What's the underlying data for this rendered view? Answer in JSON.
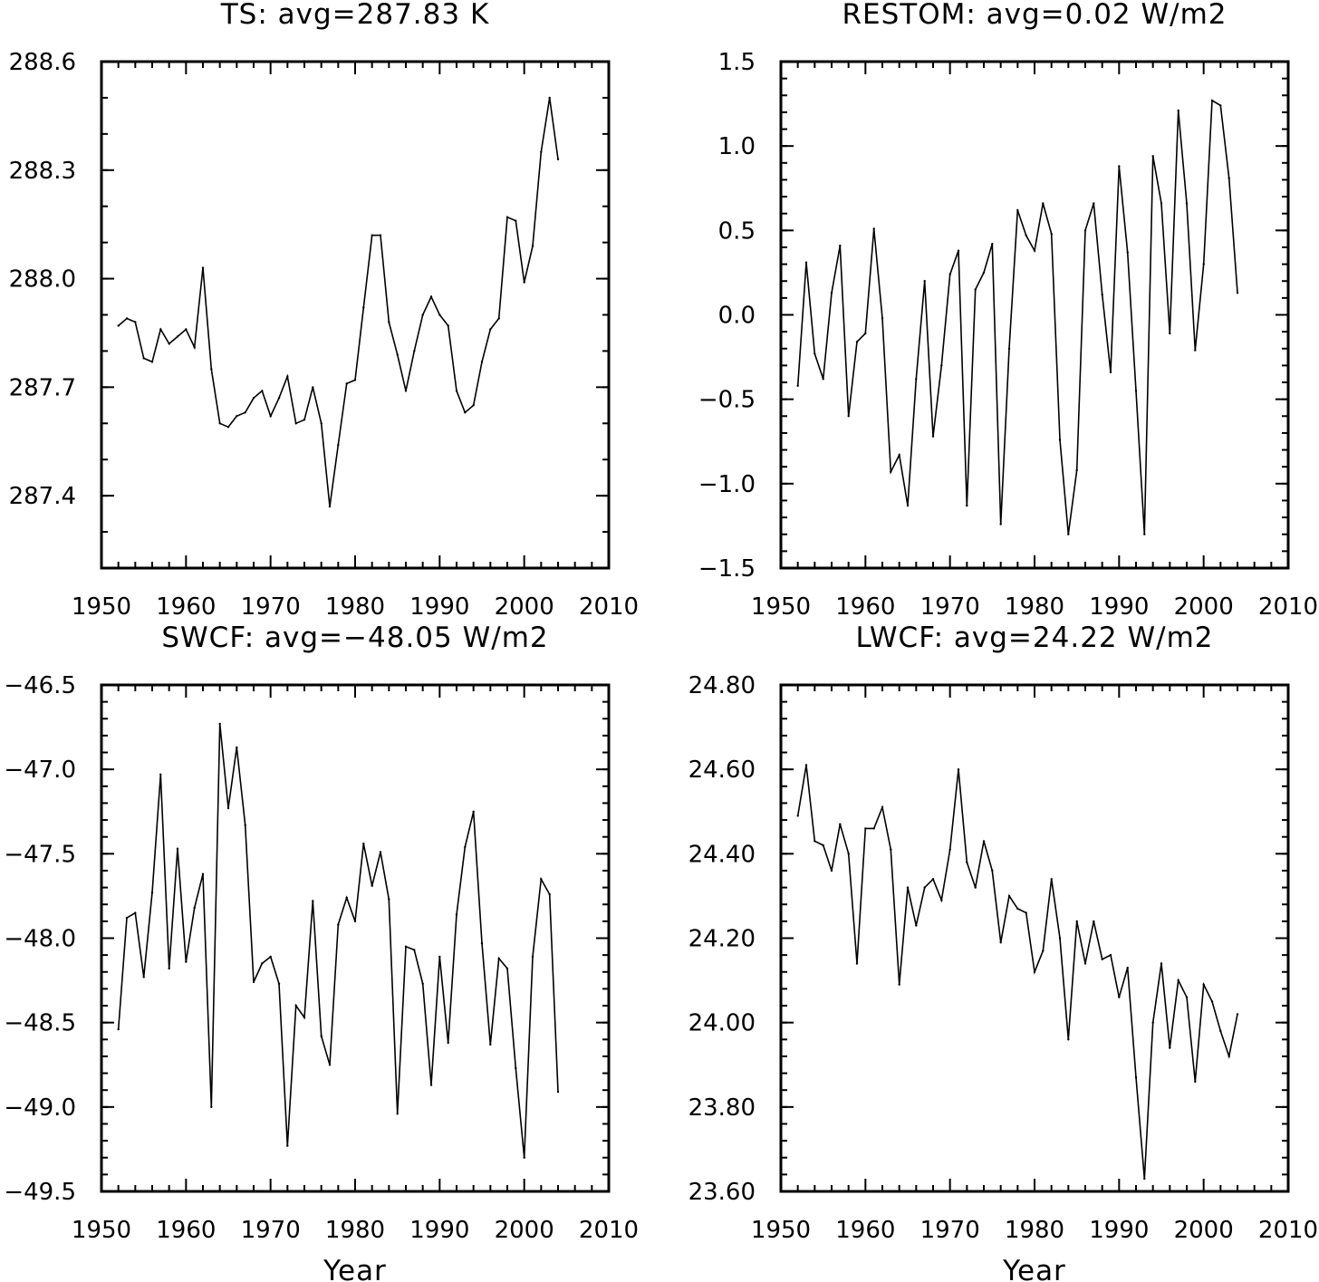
{
  "chart_data": [
    {
      "type": "line",
      "title": "TS: avg=287.83 K",
      "xlabel": "",
      "ylabel": "",
      "xlim": [
        1950,
        2010
      ],
      "ylim": [
        287.2,
        288.6
      ],
      "xticks": [
        1950,
        1960,
        1970,
        1980,
        1990,
        2000,
        2010
      ],
      "xtick_labels": [
        "1950",
        "1960",
        "1970",
        "1980",
        "1990",
        "2000",
        "2010"
      ],
      "yticks": [
        287.4,
        287.7,
        288.0,
        288.3,
        288.6
      ],
      "ytick_labels": [
        "287.4",
        "287.7",
        "288.0",
        "288.3",
        "288.6"
      ],
      "yminor_step": 0.1,
      "grid": false,
      "series": [
        {
          "x": [
            1952,
            1953,
            1954,
            1955,
            1956,
            1957,
            1958,
            1959,
            1960,
            1961,
            1962,
            1963,
            1964,
            1965,
            1966,
            1967,
            1968,
            1969,
            1970,
            1971,
            1972,
            1973,
            1974,
            1975,
            1976,
            1977,
            1978,
            1979,
            1980,
            1981,
            1982,
            1983,
            1984,
            1985,
            1986,
            1987,
            1988,
            1989,
            1990,
            1991,
            1992,
            1993,
            1994,
            1995,
            1996,
            1997,
            1998,
            1999,
            2000,
            2001,
            2002,
            2003,
            2004
          ],
          "values": [
            287.87,
            287.89,
            287.88,
            287.78,
            287.77,
            287.86,
            287.82,
            287.84,
            287.86,
            287.81,
            288.03,
            287.75,
            287.6,
            287.59,
            287.62,
            287.63,
            287.67,
            287.69,
            287.62,
            287.67,
            287.73,
            287.6,
            287.61,
            287.7,
            287.6,
            287.37,
            287.54,
            287.71,
            287.72,
            287.92,
            288.12,
            288.12,
            287.88,
            287.79,
            287.69,
            287.8,
            287.9,
            287.95,
            287.9,
            287.87,
            287.69,
            287.63,
            287.65,
            287.77,
            287.86,
            287.89,
            288.17,
            288.16,
            287.99,
            288.09,
            288.35,
            288.5,
            288.33
          ]
        }
      ]
    },
    {
      "type": "line",
      "title": "RESTOM: avg=0.02 W/m2",
      "xlabel": "",
      "ylabel": "",
      "xlim": [
        1950,
        2010
      ],
      "ylim": [
        -1.5,
        1.5
      ],
      "xticks": [
        1950,
        1960,
        1970,
        1980,
        1990,
        2000,
        2010
      ],
      "xtick_labels": [
        "1950",
        "1960",
        "1970",
        "1980",
        "1990",
        "2000",
        "2010"
      ],
      "yticks": [
        -1.5,
        -1.0,
        -0.5,
        0.0,
        0.5,
        1.0,
        1.5
      ],
      "ytick_labels": [
        "−1.5",
        "−1.0",
        "−0.5",
        "0.0",
        "0.5",
        "1.0",
        "1.5"
      ],
      "yminor_step": 0.1,
      "grid": false,
      "series": [
        {
          "x": [
            1952,
            1953,
            1954,
            1955,
            1956,
            1957,
            1958,
            1959,
            1960,
            1961,
            1962,
            1963,
            1964,
            1965,
            1966,
            1967,
            1968,
            1969,
            1970,
            1971,
            1972,
            1973,
            1974,
            1975,
            1976,
            1977,
            1978,
            1979,
            1980,
            1981,
            1982,
            1983,
            1984,
            1985,
            1986,
            1987,
            1988,
            1989,
            1990,
            1991,
            1992,
            1993,
            1994,
            1995,
            1996,
            1997,
            1998,
            1999,
            2000,
            2001,
            2002,
            2003,
            2004
          ],
          "values": [
            -0.42,
            0.31,
            -0.23,
            -0.38,
            0.13,
            0.41,
            -0.6,
            -0.16,
            -0.11,
            0.51,
            -0.02,
            -0.93,
            -0.83,
            -1.13,
            -0.38,
            0.2,
            -0.72,
            -0.3,
            0.24,
            0.38,
            -1.13,
            0.15,
            0.25,
            0.42,
            -1.24,
            -0.2,
            0.62,
            0.47,
            0.38,
            0.66,
            0.48,
            -0.74,
            -1.3,
            -0.92,
            0.5,
            0.66,
            0.12,
            -0.34,
            0.88,
            0.37,
            -0.45,
            -1.3,
            0.94,
            0.66,
            -0.11,
            1.21,
            0.66,
            -0.21,
            0.3,
            1.27,
            1.24,
            0.81,
            0.13
          ]
        }
      ]
    },
    {
      "type": "line",
      "title": "SWCF: avg=−48.05 W/m2",
      "xlabel": "Year",
      "ylabel": "",
      "xlim": [
        1950,
        2010
      ],
      "ylim": [
        -49.5,
        -46.5
      ],
      "xticks": [
        1950,
        1960,
        1970,
        1980,
        1990,
        2000,
        2010
      ],
      "xtick_labels": [
        "1950",
        "1960",
        "1970",
        "1980",
        "1990",
        "2000",
        "2010"
      ],
      "yticks": [
        -49.5,
        -49.0,
        -48.5,
        -48.0,
        -47.5,
        -47.0,
        -46.5
      ],
      "ytick_labels": [
        "−49.5",
        "−49.0",
        "−48.5",
        "−48.0",
        "−47.5",
        "−47.0",
        "−46.5"
      ],
      "yminor_step": 0.1,
      "grid": false,
      "series": [
        {
          "x": [
            1952,
            1953,
            1954,
            1955,
            1956,
            1957,
            1958,
            1959,
            1960,
            1961,
            1962,
            1963,
            1964,
            1965,
            1966,
            1967,
            1968,
            1969,
            1970,
            1971,
            1972,
            1973,
            1974,
            1975,
            1976,
            1977,
            1978,
            1979,
            1980,
            1981,
            1982,
            1983,
            1984,
            1985,
            1986,
            1987,
            1988,
            1989,
            1990,
            1991,
            1992,
            1993,
            1994,
            1995,
            1996,
            1997,
            1998,
            1999,
            2000,
            2001,
            2002,
            2003,
            2004
          ],
          "values": [
            -48.54,
            -47.88,
            -47.85,
            -48.23,
            -47.73,
            -47.03,
            -48.18,
            -47.47,
            -48.14,
            -47.82,
            -47.62,
            -49.0,
            -46.73,
            -47.23,
            -46.87,
            -47.33,
            -48.26,
            -48.15,
            -48.11,
            -48.27,
            -49.23,
            -48.4,
            -48.47,
            -47.78,
            -48.58,
            -48.75,
            -47.92,
            -47.76,
            -47.9,
            -47.44,
            -47.69,
            -47.49,
            -47.77,
            -49.04,
            -48.05,
            -48.07,
            -48.27,
            -48.87,
            -48.11,
            -48.62,
            -47.86,
            -47.46,
            -47.25,
            -48.03,
            -48.63,
            -48.12,
            -48.18,
            -48.77,
            -49.3,
            -48.11,
            -47.65,
            -47.74,
            -48.91
          ]
        }
      ]
    },
    {
      "type": "line",
      "title": "LWCF: avg=24.22 W/m2",
      "xlabel": "Year",
      "ylabel": "",
      "xlim": [
        1950,
        2010
      ],
      "ylim": [
        23.6,
        24.8
      ],
      "xticks": [
        1950,
        1960,
        1970,
        1980,
        1990,
        2000,
        2010
      ],
      "xtick_labels": [
        "1950",
        "1960",
        "1970",
        "1980",
        "1990",
        "2000",
        "2010"
      ],
      "yticks": [
        23.6,
        23.8,
        24.0,
        24.2,
        24.4,
        24.6,
        24.8
      ],
      "ytick_labels": [
        "23.60",
        "23.80",
        "24.00",
        "24.20",
        "24.40",
        "24.60",
        "24.80"
      ],
      "yminor_step": 0.04,
      "grid": false,
      "series": [
        {
          "x": [
            1952,
            1953,
            1954,
            1955,
            1956,
            1957,
            1958,
            1959,
            1960,
            1961,
            1962,
            1963,
            1964,
            1965,
            1966,
            1967,
            1968,
            1969,
            1970,
            1971,
            1972,
            1973,
            1974,
            1975,
            1976,
            1977,
            1978,
            1979,
            1980,
            1981,
            1982,
            1983,
            1984,
            1985,
            1986,
            1987,
            1988,
            1989,
            1990,
            1991,
            1992,
            1993,
            1994,
            1995,
            1996,
            1997,
            1998,
            1999,
            2000,
            2001,
            2002,
            2003,
            2004
          ],
          "values": [
            24.49,
            24.61,
            24.43,
            24.42,
            24.36,
            24.47,
            24.4,
            24.14,
            24.46,
            24.46,
            24.51,
            24.41,
            24.09,
            24.32,
            24.23,
            24.32,
            24.34,
            24.29,
            24.41,
            24.6,
            24.38,
            24.32,
            24.43,
            24.36,
            24.19,
            24.3,
            24.27,
            24.26,
            24.12,
            24.17,
            24.34,
            24.2,
            23.96,
            24.24,
            24.14,
            24.24,
            24.15,
            24.16,
            24.06,
            24.13,
            23.87,
            23.63,
            24.0,
            24.14,
            23.94,
            24.1,
            24.06,
            23.86,
            24.09,
            24.05,
            23.98,
            23.92,
            24.02
          ]
        }
      ]
    }
  ]
}
